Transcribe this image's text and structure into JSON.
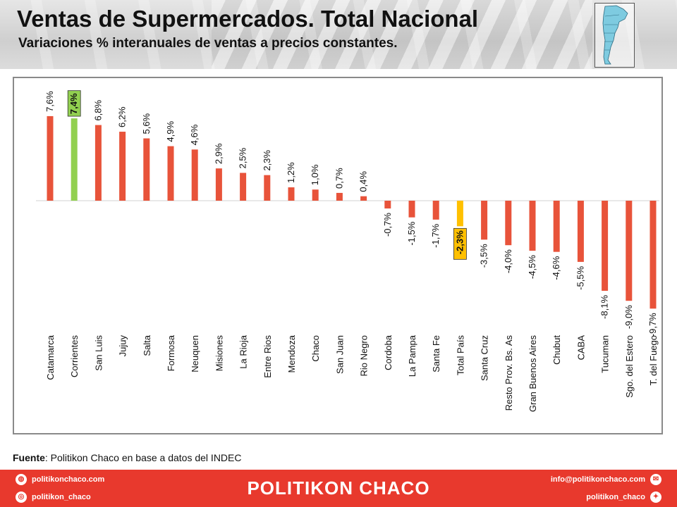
{
  "header": {
    "title": "Ventas de Supermercados. Total Nacional",
    "subtitle": "Variaciones % interanuales de ventas a precios constantes."
  },
  "source": {
    "label": "Fuente",
    "text": ": Politikon Chaco en base a datos del INDEC"
  },
  "footer": {
    "brand": "POLITIKON CHACO",
    "website": "politikonchaco.com",
    "instagram": "politikon_chaco",
    "email": "info@politikonchaco.com",
    "twitter": "politikon_chaco"
  },
  "colors": {
    "bar_default": "#e8533a",
    "bar_corrientes": "#92d050",
    "bar_total_pais": "#ffc000",
    "footer": "#e8392d"
  },
  "chart_data": {
    "type": "bar",
    "categories": [
      "Catamarca",
      "Corrientes",
      "San Luis",
      "Jujuy",
      "Salta",
      "Formosa",
      "Neuquen",
      "Misiones",
      "La Rioja",
      "Entre Rios",
      "Mendoza",
      "Chaco",
      "San Juan",
      "Rio Negro",
      "Cordoba",
      "La Pampa",
      "Santa Fe",
      "Total País",
      "Santa Cruz",
      "Resto Prov. Bs. As",
      "Gran Buenos Aires",
      "Chubut",
      "CABA",
      "Tucuman",
      "Sgo. del Estero",
      "T. del Fuego"
    ],
    "values": [
      7.6,
      7.4,
      6.8,
      6.2,
      5.6,
      4.9,
      4.6,
      2.9,
      2.5,
      2.3,
      1.2,
      1.0,
      0.7,
      0.4,
      -0.7,
      -1.5,
      -1.7,
      -2.3,
      -3.5,
      -4.0,
      -4.5,
      -4.6,
      -5.5,
      -8.1,
      -9.0,
      -9.7
    ],
    "data_labels": [
      "7,6%",
      "7,4%",
      "6,8%",
      "6,2%",
      "5,6%",
      "4,9%",
      "4,6%",
      "2,9%",
      "2,5%",
      "2,3%",
      "1,2%",
      "1,0%",
      "0,7%",
      "0,4%",
      "-0,7%",
      "-1,5%",
      "-1,7%",
      "-2,3%",
      "-3,5%",
      "-4,0%",
      "-4,5%",
      "-4,6%",
      "-5,5%",
      "-8,1%",
      "-9,0%",
      "-9,7%"
    ],
    "highlighted": {
      "Corrientes": "#92d050",
      "Total País": "#ffc000"
    },
    "ylim": [
      -10,
      8
    ],
    "grid": false,
    "legend": "none"
  }
}
